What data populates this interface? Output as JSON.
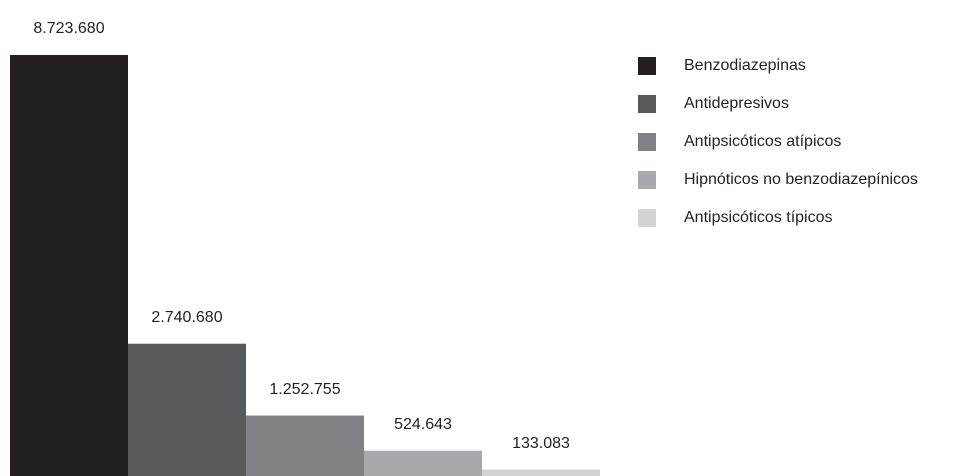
{
  "chart_data": {
    "type": "bar",
    "categories": [
      "Benzodiazepinas",
      "Antidepresivos",
      "Antipsicóticos atípicos",
      "Hipnóticos no benzodiazepínicos",
      "Antipsicóticos típicos"
    ],
    "values": [
      8723680,
      2740680,
      1252755,
      524643,
      133083
    ],
    "value_labels": [
      "8.723.680",
      "2.740.680",
      "1.252.755",
      "524.643",
      "133.083"
    ],
    "colors": [
      "#231f20",
      "#58595b",
      "#808285",
      "#a7a9ac",
      "#d1d3d4"
    ],
    "legend": "top-right"
  }
}
